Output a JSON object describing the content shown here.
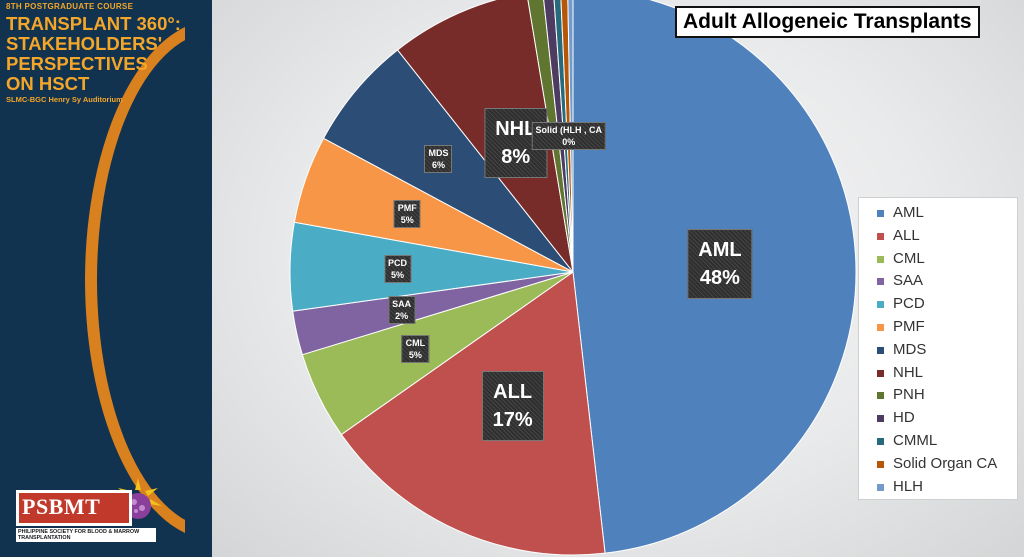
{
  "sidebar": {
    "course": "8TH POSTGRADUATE COURSE",
    "title_lines": [
      "TRANSPLANT 360°:",
      "STAKEHOLDERS'",
      "PERSPECTIVES",
      "ON HSCT"
    ],
    "venue": "SLMC-BGC Henry Sy Auditorium",
    "logo_word": "PSBMT",
    "logo_tagline": "PHILIPPINE SOCIETY FOR BLOOD & MARROW TRANSPLANTATION",
    "accent_color": "#f4a62a",
    "background_color": "#11334f"
  },
  "chart_data": {
    "type": "pie",
    "title": "Adult Allogeneic Transplants",
    "legend_position": "right",
    "slices": [
      {
        "name": "AML",
        "value": 48,
        "color": "#4f81bd",
        "label": "48%"
      },
      {
        "name": "ALL",
        "value": 17,
        "color": "#c0504d",
        "label": "17%"
      },
      {
        "name": "CML",
        "value": 5,
        "color": "#9bbb59",
        "label": "5%"
      },
      {
        "name": "SAA",
        "value": 2.5,
        "color": "#8064a2",
        "label": "2%"
      },
      {
        "name": "PCD",
        "value": 5,
        "color": "#4bacc6",
        "label": "5%"
      },
      {
        "name": "PMF",
        "value": 5,
        "color": "#f79646",
        "label": "5%"
      },
      {
        "name": "MDS",
        "value": 6.5,
        "color": "#2c4d75",
        "label": "6%"
      },
      {
        "name": "NHL",
        "value": 8,
        "color": "#772c2a",
        "label": "8%"
      },
      {
        "name": "PNH",
        "value": 0.9,
        "color": "#5f7530",
        "label": ""
      },
      {
        "name": "HD",
        "value": 0.6,
        "color": "#4d3b62",
        "label": ""
      },
      {
        "name": "CMML",
        "value": 0.4,
        "color": "#276a7c",
        "label": ""
      },
      {
        "name": "Solid Organ CA",
        "value": 0.4,
        "color": "#b65708",
        "label": "0%"
      },
      {
        "name": "HLH",
        "value": 0.3,
        "color": "#729aca",
        "label": ""
      }
    ],
    "slice_labels": [
      {
        "slice": "AML",
        "name": "AML",
        "pct": "48%",
        "size": "large"
      },
      {
        "slice": "ALL",
        "name": "ALL",
        "pct": "17%",
        "size": "large"
      },
      {
        "slice": "NHL",
        "name": "NHL",
        "pct": "8%",
        "size": "large"
      },
      {
        "slice": "CML",
        "name": "CML",
        "pct": "5%",
        "size": "small"
      },
      {
        "slice": "SAA",
        "name": "SAA",
        "pct": "2%",
        "size": "small"
      },
      {
        "slice": "PCD",
        "name": "PCD",
        "pct": "5%",
        "size": "small"
      },
      {
        "slice": "PMF",
        "name": "PMF",
        "pct": "5%",
        "size": "small"
      },
      {
        "slice": "MDS",
        "name": "MDS",
        "pct": "6%",
        "size": "small"
      },
      {
        "slice": "Solid Organ CA",
        "name": "Solid (HLH , CA",
        "pct": "0%",
        "size": "small"
      }
    ]
  }
}
